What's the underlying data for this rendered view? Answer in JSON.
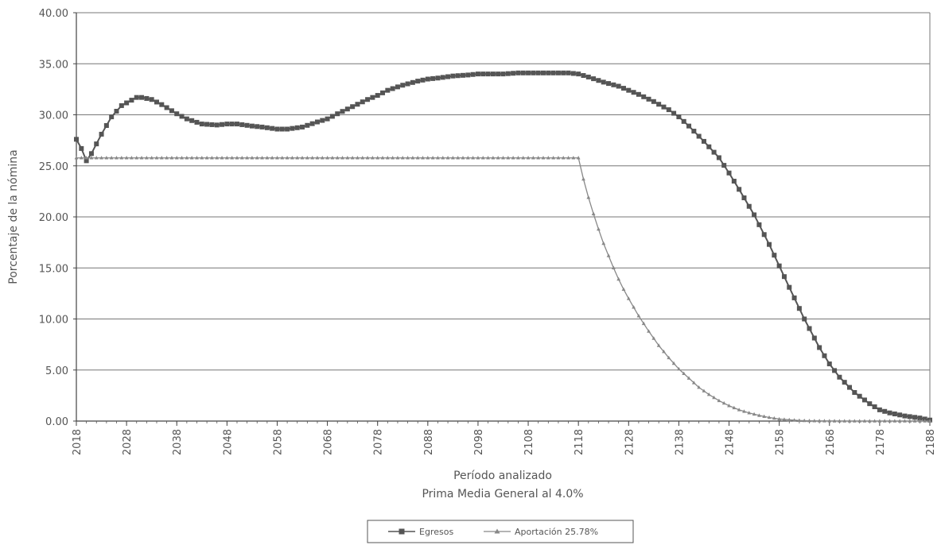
{
  "chart_data": {
    "type": "line",
    "xlabel": "Período analizado",
    "subtitle": "Prima Media General al 4.0%",
    "ylabel": "Porcentaje de la nómina",
    "ylim": [
      0,
      40
    ],
    "xlim": [
      2018,
      2188
    ],
    "y_ticks": [
      "0.00",
      "5.00",
      "10.00",
      "15.00",
      "20.00",
      "25.00",
      "30.00",
      "35.00",
      "40.00"
    ],
    "x_ticks": [
      "2018",
      "2028",
      "2038",
      "2048",
      "2058",
      "2068",
      "2078",
      "2088",
      "2098",
      "2108",
      "2118",
      "2128",
      "2138",
      "2148",
      "2158",
      "2168",
      "2178",
      "2188"
    ],
    "grid": "horizontal",
    "legend_position": "bottom",
    "series": [
      {
        "name": "Egresos",
        "color": "#555555",
        "marker": "square",
        "x": [
          2018,
          2019,
          2020,
          2021,
          2023,
          2025,
          2027,
          2030,
          2031,
          2033,
          2035,
          2038,
          2040,
          2043,
          2046,
          2048,
          2050,
          2053,
          2055,
          2058,
          2060,
          2063,
          2066,
          2068,
          2070,
          2073,
          2076,
          2078,
          2080,
          2083,
          2086,
          2088,
          2090,
          2093,
          2096,
          2098,
          2100,
          2103,
          2106,
          2108,
          2110,
          2113,
          2116,
          2118,
          2120,
          2123,
          2126,
          2128,
          2130,
          2133,
          2136,
          2138,
          2140,
          2143,
          2146,
          2148,
          2150,
          2153,
          2156,
          2158,
          2160,
          2163,
          2166,
          2168,
          2170,
          2173,
          2176,
          2178,
          2180,
          2183,
          2186,
          2188
        ],
        "y": [
          27.6,
          26.7,
          25.5,
          26.2,
          28.1,
          29.8,
          30.9,
          31.7,
          31.7,
          31.5,
          31.0,
          30.1,
          29.6,
          29.1,
          29.0,
          29.1,
          29.1,
          28.9,
          28.8,
          28.6,
          28.6,
          28.8,
          29.3,
          29.6,
          30.1,
          30.8,
          31.5,
          31.9,
          32.4,
          32.9,
          33.3,
          33.5,
          33.6,
          33.8,
          33.9,
          34.0,
          34.0,
          34.0,
          34.1,
          34.1,
          34.1,
          34.1,
          34.1,
          34.0,
          33.7,
          33.2,
          32.8,
          32.4,
          32.0,
          31.3,
          30.5,
          29.8,
          28.9,
          27.4,
          25.8,
          24.3,
          22.7,
          20.2,
          17.3,
          15.2,
          13.1,
          10.0,
          7.2,
          5.6,
          4.3,
          2.8,
          1.7,
          1.1,
          0.8,
          0.5,
          0.3,
          0.1
        ]
      },
      {
        "name": "Aportación 25.78%",
        "color": "#888888",
        "marker": "triangle",
        "x": [
          2018,
          2020,
          2030,
          2040,
          2050,
          2060,
          2070,
          2080,
          2090,
          2100,
          2110,
          2118,
          2119,
          2120,
          2121,
          2122,
          2123,
          2124,
          2125,
          2126,
          2127,
          2128,
          2130,
          2132,
          2134,
          2136,
          2138,
          2140,
          2142,
          2144,
          2146,
          2148,
          2150,
          2152,
          2154,
          2156,
          2158,
          2160,
          2162,
          2164,
          2166,
          2168,
          2172,
          2176,
          2180,
          2184,
          2188
        ],
        "y": [
          25.78,
          25.78,
          25.78,
          25.78,
          25.78,
          25.78,
          25.78,
          25.78,
          25.78,
          25.78,
          25.78,
          25.78,
          23.7,
          21.9,
          20.3,
          18.8,
          17.4,
          16.2,
          15.0,
          13.9,
          12.9,
          12.0,
          10.3,
          8.8,
          7.4,
          6.2,
          5.1,
          4.2,
          3.3,
          2.6,
          2.0,
          1.5,
          1.1,
          0.8,
          0.55,
          0.35,
          0.2,
          0.12,
          0.06,
          0.03,
          0.02,
          0.01,
          0.0,
          0.0,
          0.0,
          0.0,
          0.0
        ]
      }
    ]
  }
}
